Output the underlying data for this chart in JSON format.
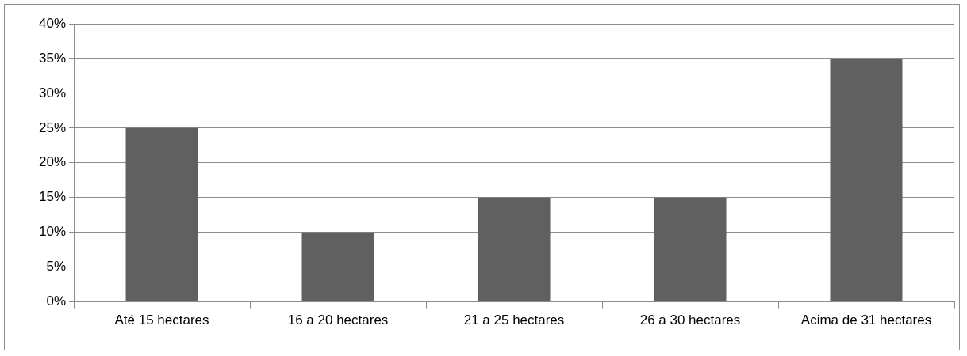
{
  "chart_data": {
    "type": "bar",
    "categories": [
      "Até 15 hectares",
      "16 a 20 hectares",
      "21 a 25 hectares",
      "26 a 30 hectares",
      "Acima de 31 hectares"
    ],
    "values": [
      25,
      10,
      15,
      15,
      35
    ],
    "color": "#606060",
    "ylim": [
      0,
      40
    ],
    "yticks": [
      {
        "value": 0,
        "label": "0%"
      },
      {
        "value": 5,
        "label": "5%"
      },
      {
        "value": 10,
        "label": "10%"
      },
      {
        "value": 15,
        "label": "15%"
      },
      {
        "value": 20,
        "label": "20%"
      },
      {
        "value": 25,
        "label": "25%"
      },
      {
        "value": 30,
        "label": "30%"
      },
      {
        "value": 35,
        "label": "35%"
      },
      {
        "value": 40,
        "label": "40%"
      }
    ],
    "grid": "y",
    "legend": false
  }
}
